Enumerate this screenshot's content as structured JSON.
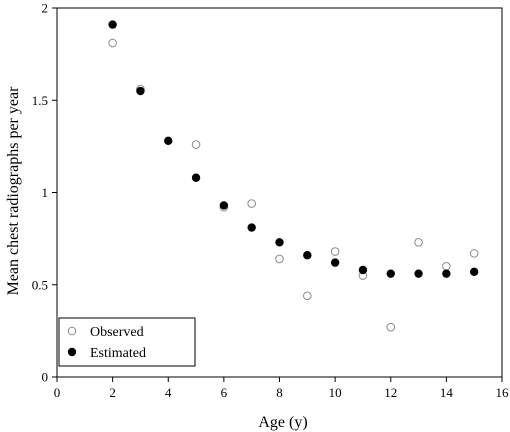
{
  "chart_data": {
    "type": "scatter",
    "xlabel": "Age (y)",
    "ylabel": "Mean chest radiographs per year",
    "xlim": [
      0,
      16
    ],
    "ylim": [
      0,
      2
    ],
    "xticks": [
      0,
      2,
      4,
      6,
      8,
      10,
      12,
      14,
      16
    ],
    "yticks": [
      0,
      0.5,
      1,
      1.5,
      2
    ],
    "xtick_labels": [
      "0",
      "2",
      "4",
      "6",
      "8",
      "10",
      "12",
      "14",
      "16"
    ],
    "ytick_labels": [
      "0",
      "0.5",
      "1",
      "1.5",
      "2"
    ],
    "grid": false,
    "legend_position": "bottom-left",
    "series": [
      {
        "name": "Observed",
        "marker": "open-circle",
        "color": "#8a8a8a",
        "points": [
          {
            "x": 2,
            "y": 1.81
          },
          {
            "x": 3,
            "y": 1.56
          },
          {
            "x": 5,
            "y": 1.26
          },
          {
            "x": 6,
            "y": 0.92
          },
          {
            "x": 7,
            "y": 0.94
          },
          {
            "x": 8,
            "y": 0.64
          },
          {
            "x": 9,
            "y": 0.44
          },
          {
            "x": 10,
            "y": 0.68
          },
          {
            "x": 11,
            "y": 0.55
          },
          {
            "x": 12,
            "y": 0.27
          },
          {
            "x": 13,
            "y": 0.73
          },
          {
            "x": 14,
            "y": 0.6
          },
          {
            "x": 15,
            "y": 0.67
          }
        ]
      },
      {
        "name": "Estimated",
        "marker": "filled-circle",
        "color": "#000000",
        "points": [
          {
            "x": 2,
            "y": 1.91
          },
          {
            "x": 3,
            "y": 1.55
          },
          {
            "x": 4,
            "y": 1.28
          },
          {
            "x": 5,
            "y": 1.08
          },
          {
            "x": 6,
            "y": 0.93
          },
          {
            "x": 7,
            "y": 0.81
          },
          {
            "x": 8,
            "y": 0.73
          },
          {
            "x": 9,
            "y": 0.66
          },
          {
            "x": 10,
            "y": 0.62
          },
          {
            "x": 11,
            "y": 0.58
          },
          {
            "x": 12,
            "y": 0.56
          },
          {
            "x": 13,
            "y": 0.56
          },
          {
            "x": 14,
            "y": 0.56
          },
          {
            "x": 15,
            "y": 0.57
          }
        ]
      }
    ]
  }
}
